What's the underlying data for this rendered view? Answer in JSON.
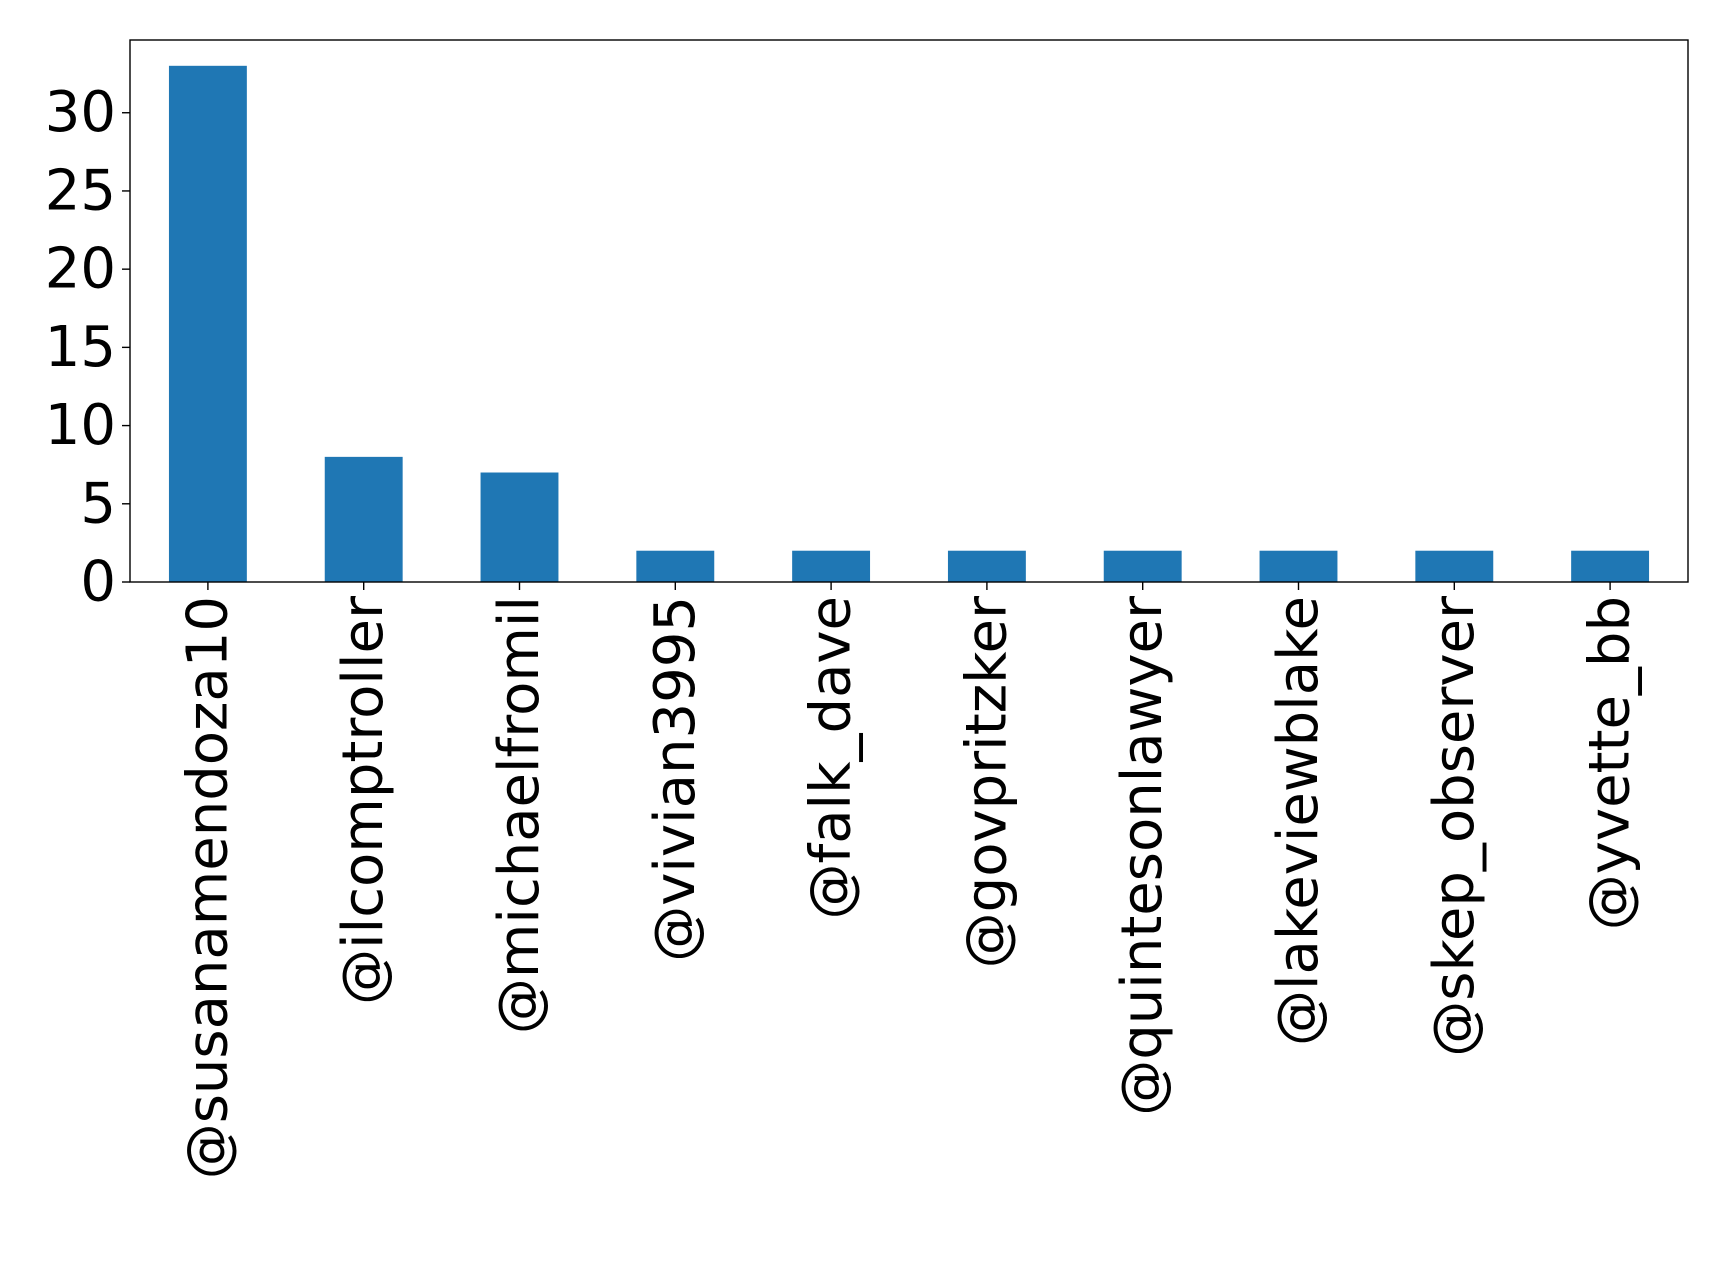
{
  "chart_data": {
    "type": "bar",
    "categories": [
      "@susanamendoza10",
      "@ilcomptroller",
      "@michaelfromil",
      "@vivian3995",
      "@falk_dave",
      "@govpritzker",
      "@quintesonlawyer",
      "@lakeviewblake",
      "@skep_observer",
      "@yvette_bb"
    ],
    "values": [
      33,
      8,
      7,
      2,
      2,
      2,
      2,
      2,
      2,
      2
    ],
    "yticks": [
      "0",
      "5",
      "10",
      "15",
      "20",
      "25",
      "30"
    ],
    "ylim": [
      0,
      34.65
    ],
    "title": "",
    "xlabel": "",
    "ylabel": "",
    "bar_color": "#1f77b4",
    "grid": false,
    "legend": "none"
  }
}
